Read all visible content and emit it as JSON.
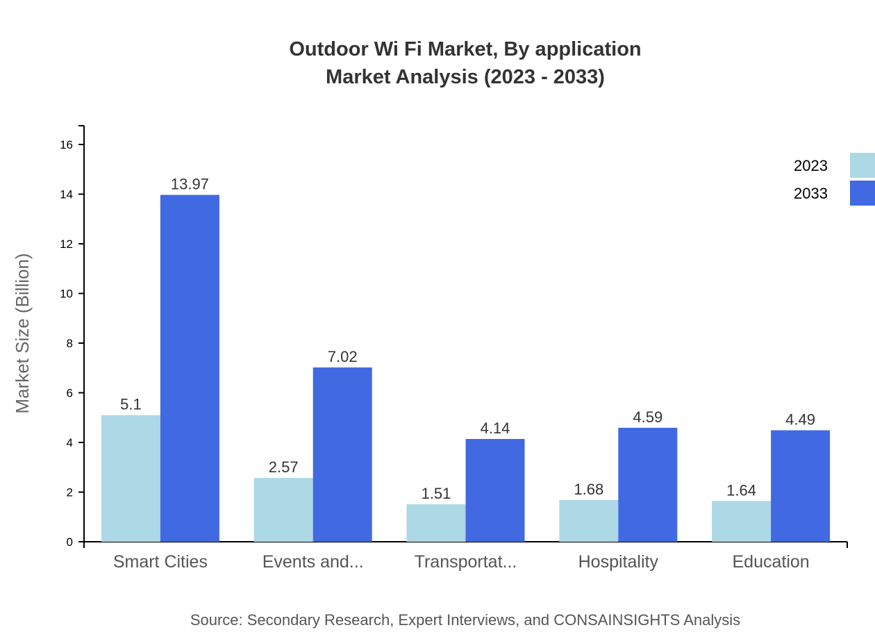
{
  "chart_data": {
    "type": "bar",
    "title": "Outdoor Wi Fi Market, By application",
    "subtitle": "Market Analysis (2023 - 2033)",
    "xlabel": "",
    "ylabel": "Market Size (Billion)",
    "categories": [
      "Smart Cities",
      "Events and...",
      "Transportat...",
      "Hospitality",
      "Education"
    ],
    "series": [
      {
        "name": "2023",
        "color": "#ADD8E6",
        "values": [
          5.1,
          2.57,
          1.51,
          1.68,
          1.64
        ]
      },
      {
        "name": "2033",
        "color": "#4169E1",
        "values": [
          13.97,
          7.02,
          4.14,
          4.59,
          4.49
        ]
      }
    ],
    "yticks": [
      0,
      2,
      4,
      6,
      8,
      10,
      12,
      14,
      16
    ],
    "ylim": [
      0,
      16.75
    ],
    "grid": false,
    "legend": "top-right",
    "source": "Source: Secondary Research, Expert Interviews, and CONSAINSIGHTS Analysis"
  }
}
